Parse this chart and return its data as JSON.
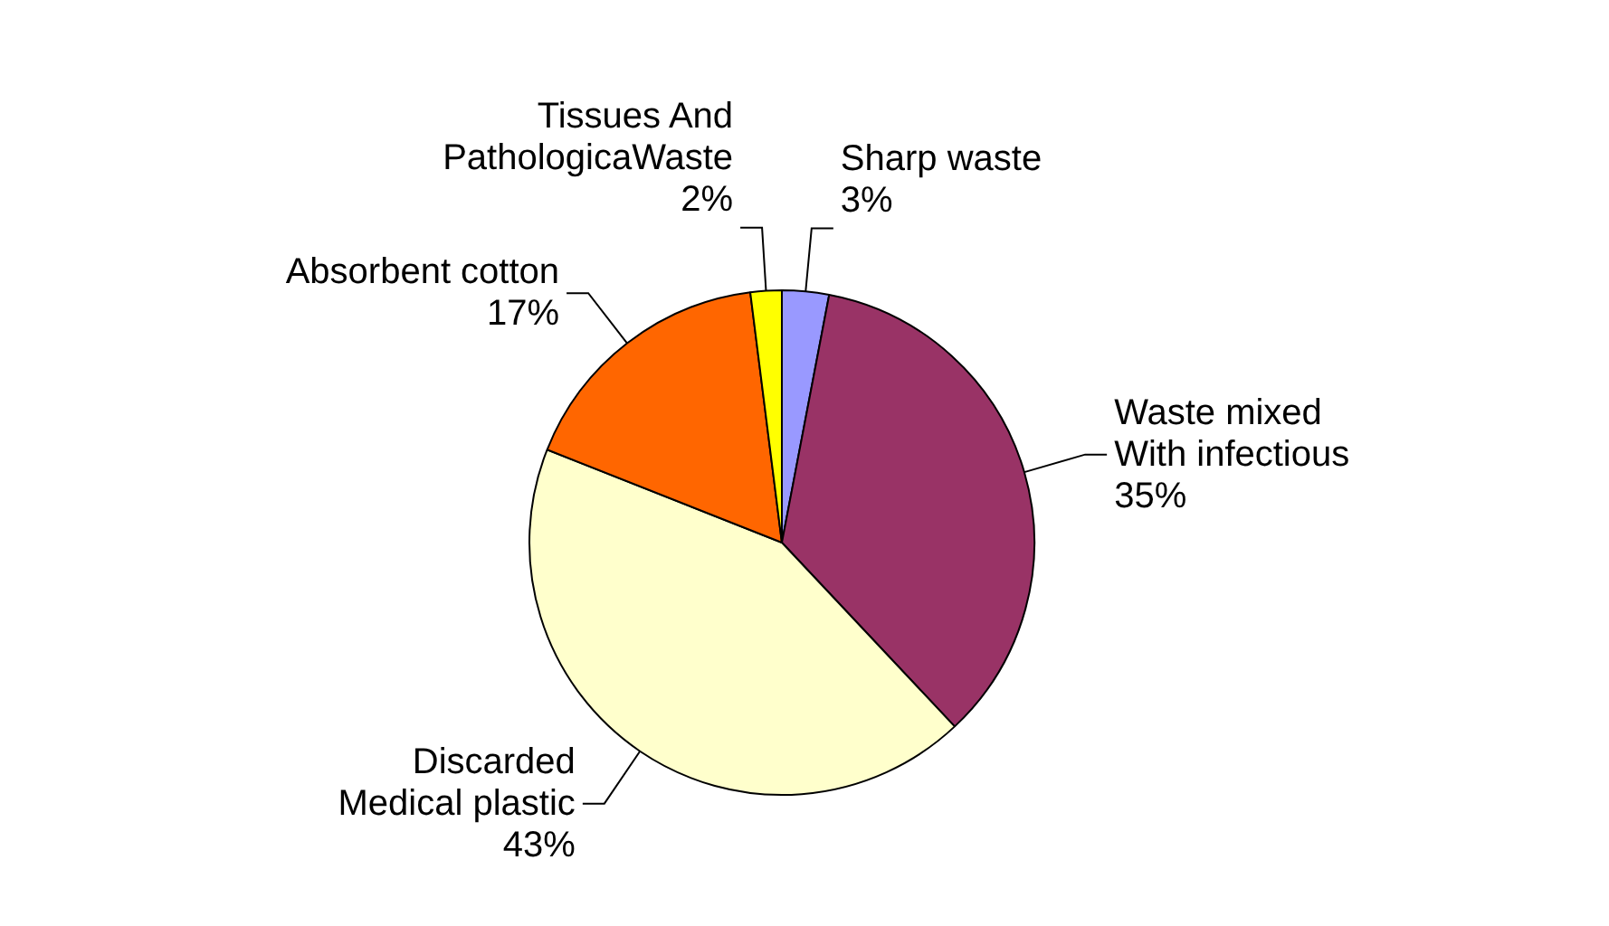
{
  "chart_data": {
    "type": "pie",
    "categories": [
      "Sharp waste",
      "Waste mixed With infectious",
      "Discarded Medical plastic",
      "Absorbent cotton",
      "Tissues And PathologicaWaste"
    ],
    "values": [
      3,
      35,
      43,
      17,
      2
    ],
    "value_labels": [
      "3%",
      "35%",
      "43%",
      "17%",
      "2%"
    ],
    "colors": [
      "#9999ff",
      "#993366",
      "#ffffcc",
      "#ff6600",
      "#ffff00"
    ]
  }
}
